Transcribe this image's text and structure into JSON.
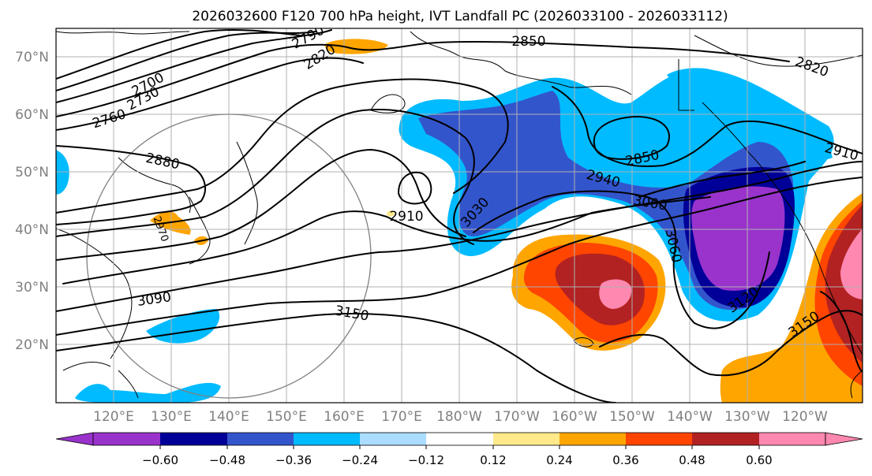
{
  "title": "2026032600 F120 700 hPa height, IVT Landfall PC (2026033100 - 2026033112)",
  "lat_labels": [
    "70°N",
    "60°N",
    "50°N",
    "40°N",
    "30°N",
    "20°N"
  ],
  "lon_labels": [
    "120°E",
    "130°E",
    "140°E",
    "150°E",
    "160°E",
    "170°E",
    "180°W",
    "170°W",
    "160°W",
    "150°W",
    "140°W",
    "130°W",
    "120°W"
  ],
  "contour_labels": [
    "2850",
    "2820",
    "2790",
    "2700",
    "2730",
    "2760",
    "2880",
    "2850",
    "2820",
    "2910",
    "2940",
    "3000",
    "3030",
    "2910",
    "3060",
    "3120",
    "3150",
    "3090",
    "3150",
    "2970"
  ],
  "colorbar": {
    "ticks": [
      "−0.60",
      "−0.48",
      "−0.36",
      "−0.24",
      "−0.12",
      "0.12",
      "0.24",
      "0.36",
      "0.48",
      "0.60"
    ],
    "colors": [
      "#9933cc",
      "#000099",
      "#3355cc",
      "#00bbff",
      "#aaddff",
      "#ffffff",
      "#ffe98a",
      "#ffa500",
      "#ff4500",
      "#b22222",
      "#ff88b0",
      "#ff88b0"
    ]
  },
  "chart_data": {
    "type": "heatmap",
    "title": "2026032600 F120 700 hPa height, IVT Landfall PC (2026033100 - 2026033112)",
    "variable_filled": "IVT Landfall PC",
    "variable_contoured": "700 hPa height (m)",
    "lat_range": [
      10,
      75
    ],
    "lon_range_deg_east": [
      112,
      252
    ],
    "contour_levels_labeled": [
      2700,
      2730,
      2760,
      2790,
      2820,
      2850,
      2880,
      2910,
      2940,
      2970,
      3000,
      3030,
      3060,
      3090,
      3120,
      3150
    ],
    "colorbar_levels": [
      -0.6,
      -0.48,
      -0.36,
      -0.24,
      -0.12,
      0.12,
      0.24,
      0.36,
      0.48,
      0.6
    ],
    "colorbar_extend": "both"
  }
}
